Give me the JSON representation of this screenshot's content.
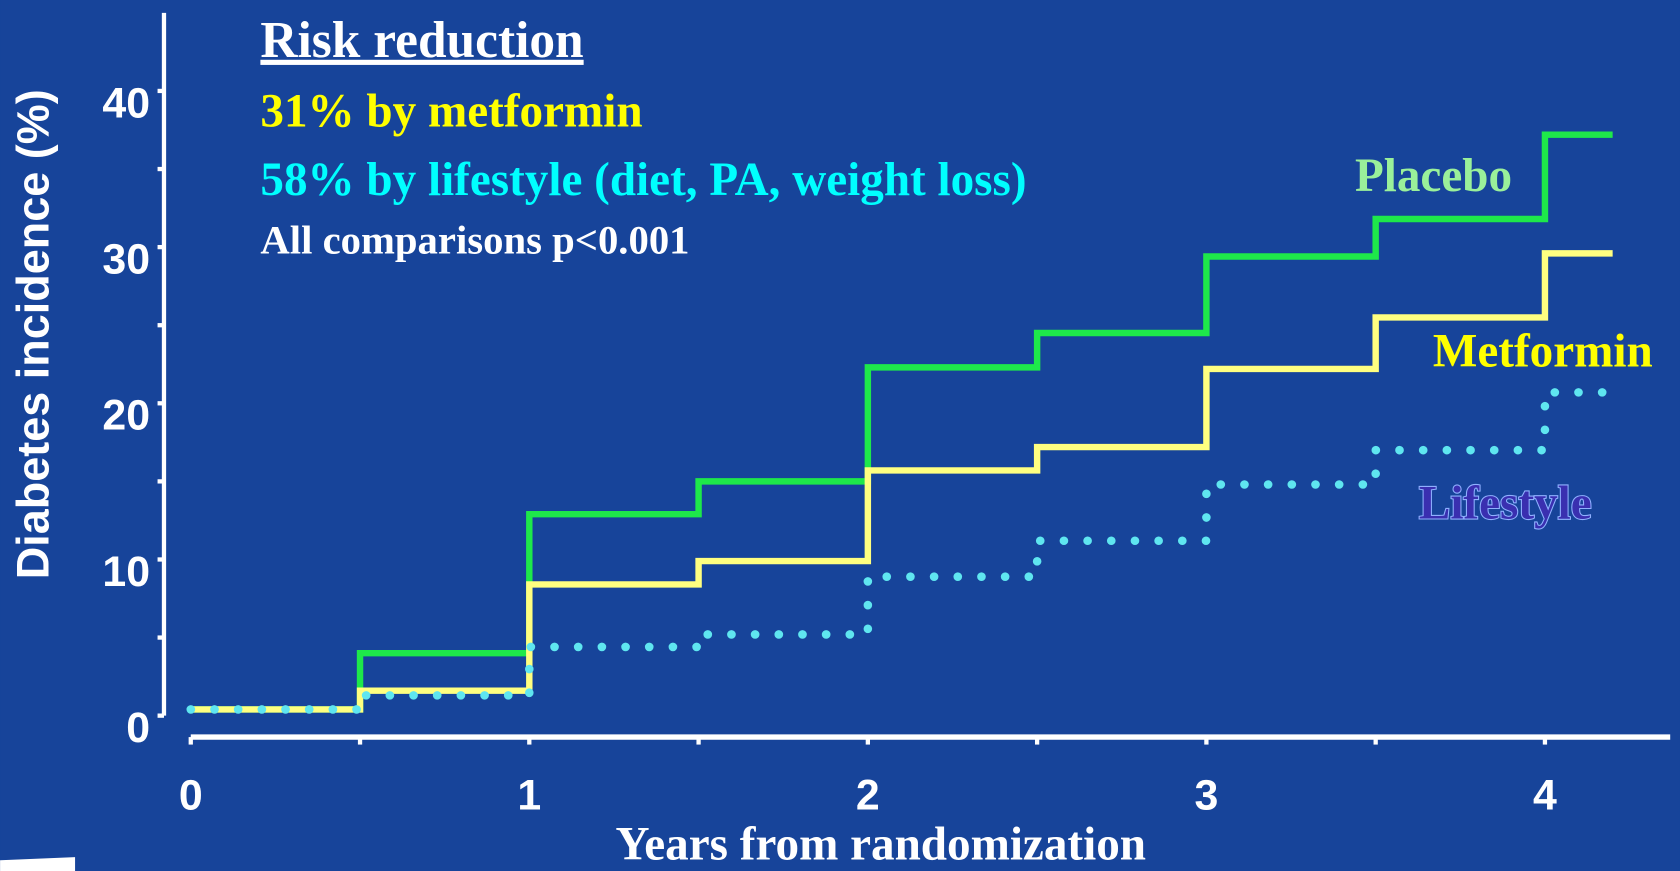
{
  "chart_data": {
    "type": "step",
    "title": "Risk reduction",
    "annotations": [
      {
        "text": "31% by metformin",
        "color": "#ffff00"
      },
      {
        "text": "58% by lifestyle (diet, PA, weight loss)",
        "color": "#00ffff"
      },
      {
        "text": "All comparisons p<0.001",
        "color": "#ffffff"
      }
    ],
    "x_label": "Years from randomization",
    "y_label": "Diabetes  incidence (%)",
    "x": [
      0,
      0.5,
      1,
      1.5,
      2,
      2.5,
      3,
      3.5,
      4,
      4.2
    ],
    "series": [
      {
        "name": "Placebo",
        "color": "#1ee84a",
        "label_color": "#9af09a",
        "style": "solid",
        "values": [
          0.4,
          4.0,
          12.9,
          15.0,
          22.3,
          24.5,
          29.4,
          31.8,
          37.2,
          37.2
        ]
      },
      {
        "name": "Metformin",
        "color": "#ffff80",
        "label_color": "#ffff00",
        "style": "solid",
        "values": [
          0.4,
          1.6,
          8.4,
          9.9,
          15.7,
          17.2,
          22.2,
          25.5,
          29.6,
          29.6
        ]
      },
      {
        "name": "Lifestyle",
        "color": "#5fe6f0",
        "label_color": "#3a2fb0",
        "style": "dotted",
        "values": [
          0.4,
          1.3,
          4.4,
          5.2,
          8.9,
          11.2,
          14.8,
          17.0,
          20.7,
          20.7
        ]
      }
    ],
    "xlim": [
      0,
      4.37
    ],
    "ylim": [
      0,
      45
    ],
    "xticks": [
      0,
      1,
      2,
      3,
      4
    ],
    "xminor_ticks": [
      0.5,
      1.5,
      2.5,
      3.5
    ],
    "yticks": [
      0,
      10,
      20,
      30,
      40
    ],
    "yminor_ticks": [
      5,
      15,
      25,
      35
    ]
  }
}
